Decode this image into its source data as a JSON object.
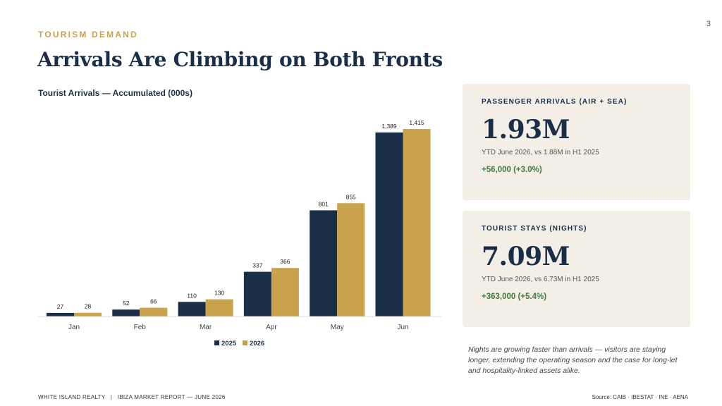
{
  "page": {
    "number": "3",
    "eyebrow": "TOURISM DEMAND",
    "title": "Arrivals Are Climbing on Both Fronts"
  },
  "colors": {
    "series_2025": "#1a2e47",
    "series_2026": "#c9a24c",
    "card_bg": "#f3efe6",
    "positive": "#3d7b3e"
  },
  "chart_data": {
    "type": "bar",
    "title": "Tourist Arrivals — Accumulated (000s)",
    "categories": [
      "Jan",
      "Feb",
      "Mar",
      "Apr",
      "May",
      "Jun"
    ],
    "series": [
      {
        "name": "2025",
        "values": [
          27,
          52,
          110,
          337,
          801,
          1389
        ],
        "labels": [
          "27",
          "52",
          "110",
          "337",
          "801",
          "1,389"
        ]
      },
      {
        "name": "2026",
        "values": [
          28,
          66,
          130,
          366,
          855,
          1415
        ],
        "labels": [
          "28",
          "66",
          "130",
          "366",
          "855",
          "1,415"
        ]
      }
    ],
    "ylim": [
      0,
      1500
    ],
    "grid": false,
    "legend": "bottom"
  },
  "cards": [
    {
      "label": "PASSENGER ARRIVALS (AIR + SEA)",
      "value": "1.93M",
      "sub": "YTD June 2026, vs 1.88M in H1 2025",
      "change": "+56,000  (+3.0%)"
    },
    {
      "label": "TOURIST STAYS (NIGHTS)",
      "value": "7.09M",
      "sub": "YTD June 2026, vs 6.73M in H1 2025",
      "change": "+363,000  (+5.4%)"
    }
  ],
  "note": "Nights are growing faster than arrivals — visitors are staying longer, extending the operating season and the case for long-let and hospitality-linked assets alike.",
  "footer": {
    "left": "WHITE ISLAND REALTY   |   IBIZA MARKET REPORT — JUNE 2026",
    "right": "Source: CAIB · IBESTAT · INE · AENA"
  }
}
